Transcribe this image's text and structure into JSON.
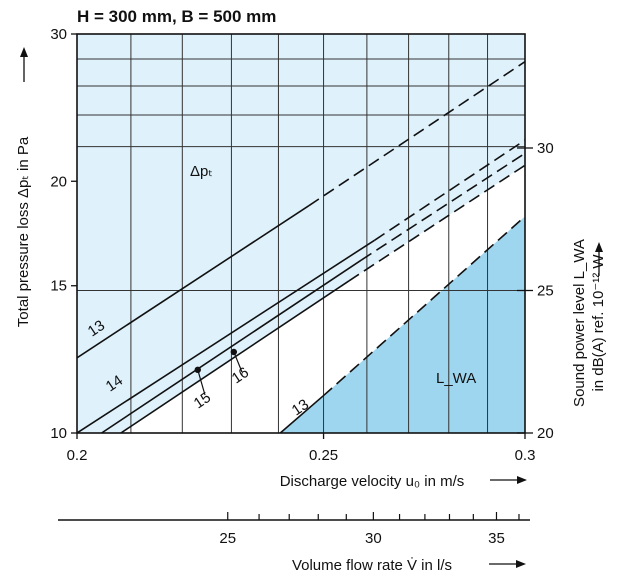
{
  "chart_data": {
    "type": "line",
    "title": "H = 300 mm, B = 500 mm",
    "xlabel": "Discharge velocity  u₀ in m/s",
    "ylabel": "Total pressure loss Δpₜ in Pa",
    "y2label_line1": "Sound power level L_WA",
    "y2label_line2": "in dB(A) ref. 10⁻¹² W",
    "x2label": "Volume flow rate V̇ in l/s",
    "x_scale": "log",
    "y_scale": "log",
    "xlim": [
      0.2,
      0.3
    ],
    "ylim": [
      10,
      30
    ],
    "y2lim": [
      20,
      34
    ],
    "x_ticks": [
      "0.2",
      "0.25",
      "0.3"
    ],
    "y_ticks": [
      "10",
      "15",
      "20",
      "30"
    ],
    "y2_ticks": [
      "20",
      "25",
      "30"
    ],
    "x2_ticks": [
      "25",
      "30",
      "35"
    ],
    "grid": true,
    "region_labels": {
      "pressure": "Δpₜ",
      "sound": "L_WA"
    },
    "pressure_series": [
      {
        "name": "13",
        "x": [
          0.2,
          0.2467,
          0.3
        ],
        "y": [
          12.3,
          18.7,
          27.8
        ]
      },
      {
        "name": "14",
        "x": [
          0.2,
          0.2618,
          0.3
        ],
        "y": [
          10.0,
          17.0,
          22.4
        ]
      },
      {
        "name": "15",
        "x": [
          0.2081,
          0.2558,
          0.3
        ],
        "y": [
          10.0,
          15.2,
          20.9
        ]
      },
      {
        "name": "16",
        "x": [
          0.2045,
          0.2587,
          0.3
        ],
        "y": [
          10.0,
          16.1,
          21.6
        ]
      }
    ],
    "markers": [
      {
        "label": "15",
        "x": 0.2231,
        "y": 11.9
      },
      {
        "label": "16",
        "x": 0.2305,
        "y": 12.5
      }
    ],
    "sound_series": [
      {
        "name": "13",
        "x": [
          0.2404,
          0.2499,
          0.3
        ],
        "y": [
          20.0,
          21.3,
          27.6
        ]
      }
    ]
  }
}
